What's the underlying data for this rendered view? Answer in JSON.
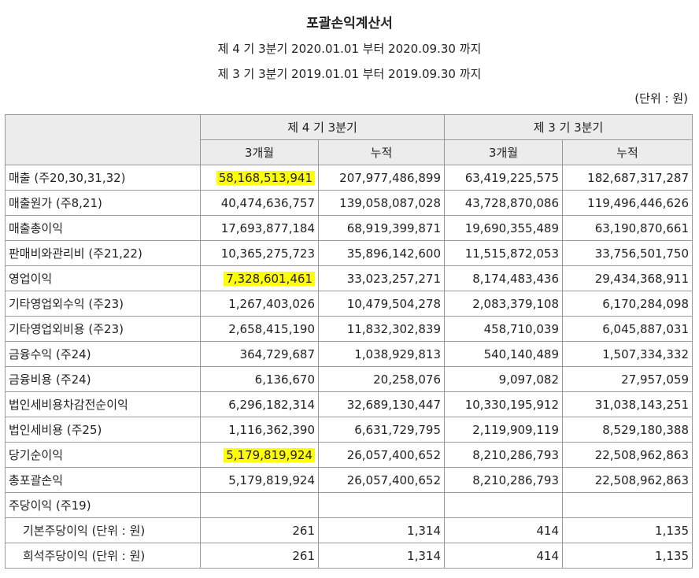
{
  "title": "포괄손익계산서",
  "period_current": "제 4 기 3분기 2020.01.01 부터 2020.09.30 까지",
  "period_prior": "제 3 기 3분기 2019.01.01 부터 2019.09.30 까지",
  "unit": "(단위 : 원)",
  "header": {
    "current_period": "제 4 기 3분기",
    "prior_period": "제 3 기 3분기",
    "three_months": "3개월",
    "cumulative": "누적"
  },
  "highlight_color": "#ffff00",
  "rows": [
    {
      "label": "매출 (주20,30,31,32)",
      "c3m": "58,168,513,941",
      "ccum": "207,977,486,899",
      "p3m": "63,419,225,575",
      "pcum": "182,687,317,287",
      "highlight": true
    },
    {
      "label": "매출원가 (주8,21)",
      "c3m": "40,474,636,757",
      "ccum": "139,058,087,028",
      "p3m": "43,728,870,086",
      "pcum": "119,496,446,626",
      "highlight": false
    },
    {
      "label": "매출총이익",
      "c3m": "17,693,877,184",
      "ccum": "68,919,399,871",
      "p3m": "19,690,355,489",
      "pcum": "63,190,870,661",
      "highlight": false
    },
    {
      "label": "판매비와관리비 (주21,22)",
      "c3m": "10,365,275,723",
      "ccum": "35,896,142,600",
      "p3m": "11,515,872,053",
      "pcum": "33,756,501,750",
      "highlight": false
    },
    {
      "label": "영업이익",
      "c3m": "7,328,601,461",
      "ccum": "33,023,257,271",
      "p3m": "8,174,483,436",
      "pcum": "29,434,368,911",
      "highlight": true
    },
    {
      "label": "기타영업외수익 (주23)",
      "c3m": "1,267,403,026",
      "ccum": "10,479,504,278",
      "p3m": "2,083,379,108",
      "pcum": "6,170,284,098",
      "highlight": false
    },
    {
      "label": "기타영업외비용 (주23)",
      "c3m": "2,658,415,190",
      "ccum": "11,832,302,839",
      "p3m": "458,710,039",
      "pcum": "6,045,887,031",
      "highlight": false
    },
    {
      "label": "금융수익 (주24)",
      "c3m": "364,729,687",
      "ccum": "1,038,929,813",
      "p3m": "540,140,489",
      "pcum": "1,507,334,332",
      "highlight": false
    },
    {
      "label": "금융비용 (주24)",
      "c3m": "6,136,670",
      "ccum": "20,258,076",
      "p3m": "9,097,082",
      "pcum": "27,957,059",
      "highlight": false
    },
    {
      "label": "법인세비용차감전순이익",
      "c3m": "6,296,182,314",
      "ccum": "32,689,130,447",
      "p3m": "10,330,195,912",
      "pcum": "31,038,143,251",
      "highlight": false
    },
    {
      "label": "법인세비용 (주25)",
      "c3m": "1,116,362,390",
      "ccum": "6,631,729,795",
      "p3m": "2,119,909,119",
      "pcum": "8,529,180,388",
      "highlight": false
    },
    {
      "label": "당기순이익",
      "c3m": "5,179,819,924",
      "ccum": "26,057,400,652",
      "p3m": "8,210,286,793",
      "pcum": "22,508,962,863",
      "highlight": true
    },
    {
      "label": "총포괄손익",
      "c3m": "5,179,819,924",
      "ccum": "26,057,400,652",
      "p3m": "8,210,286,793",
      "pcum": "22,508,962,863",
      "highlight": false
    },
    {
      "label": "주당이익 (주19)",
      "c3m": "",
      "ccum": "",
      "p3m": "",
      "pcum": "",
      "highlight": false
    },
    {
      "label": "기본주당이익 (단위 : 원)",
      "c3m": "261",
      "ccum": "1,314",
      "p3m": "414",
      "pcum": "1,135",
      "highlight": false,
      "sub": true
    },
    {
      "label": "희석주당이익 (단위 : 원)",
      "c3m": "261",
      "ccum": "1,314",
      "p3m": "414",
      "pcum": "1,135",
      "highlight": false,
      "sub": true
    }
  ]
}
